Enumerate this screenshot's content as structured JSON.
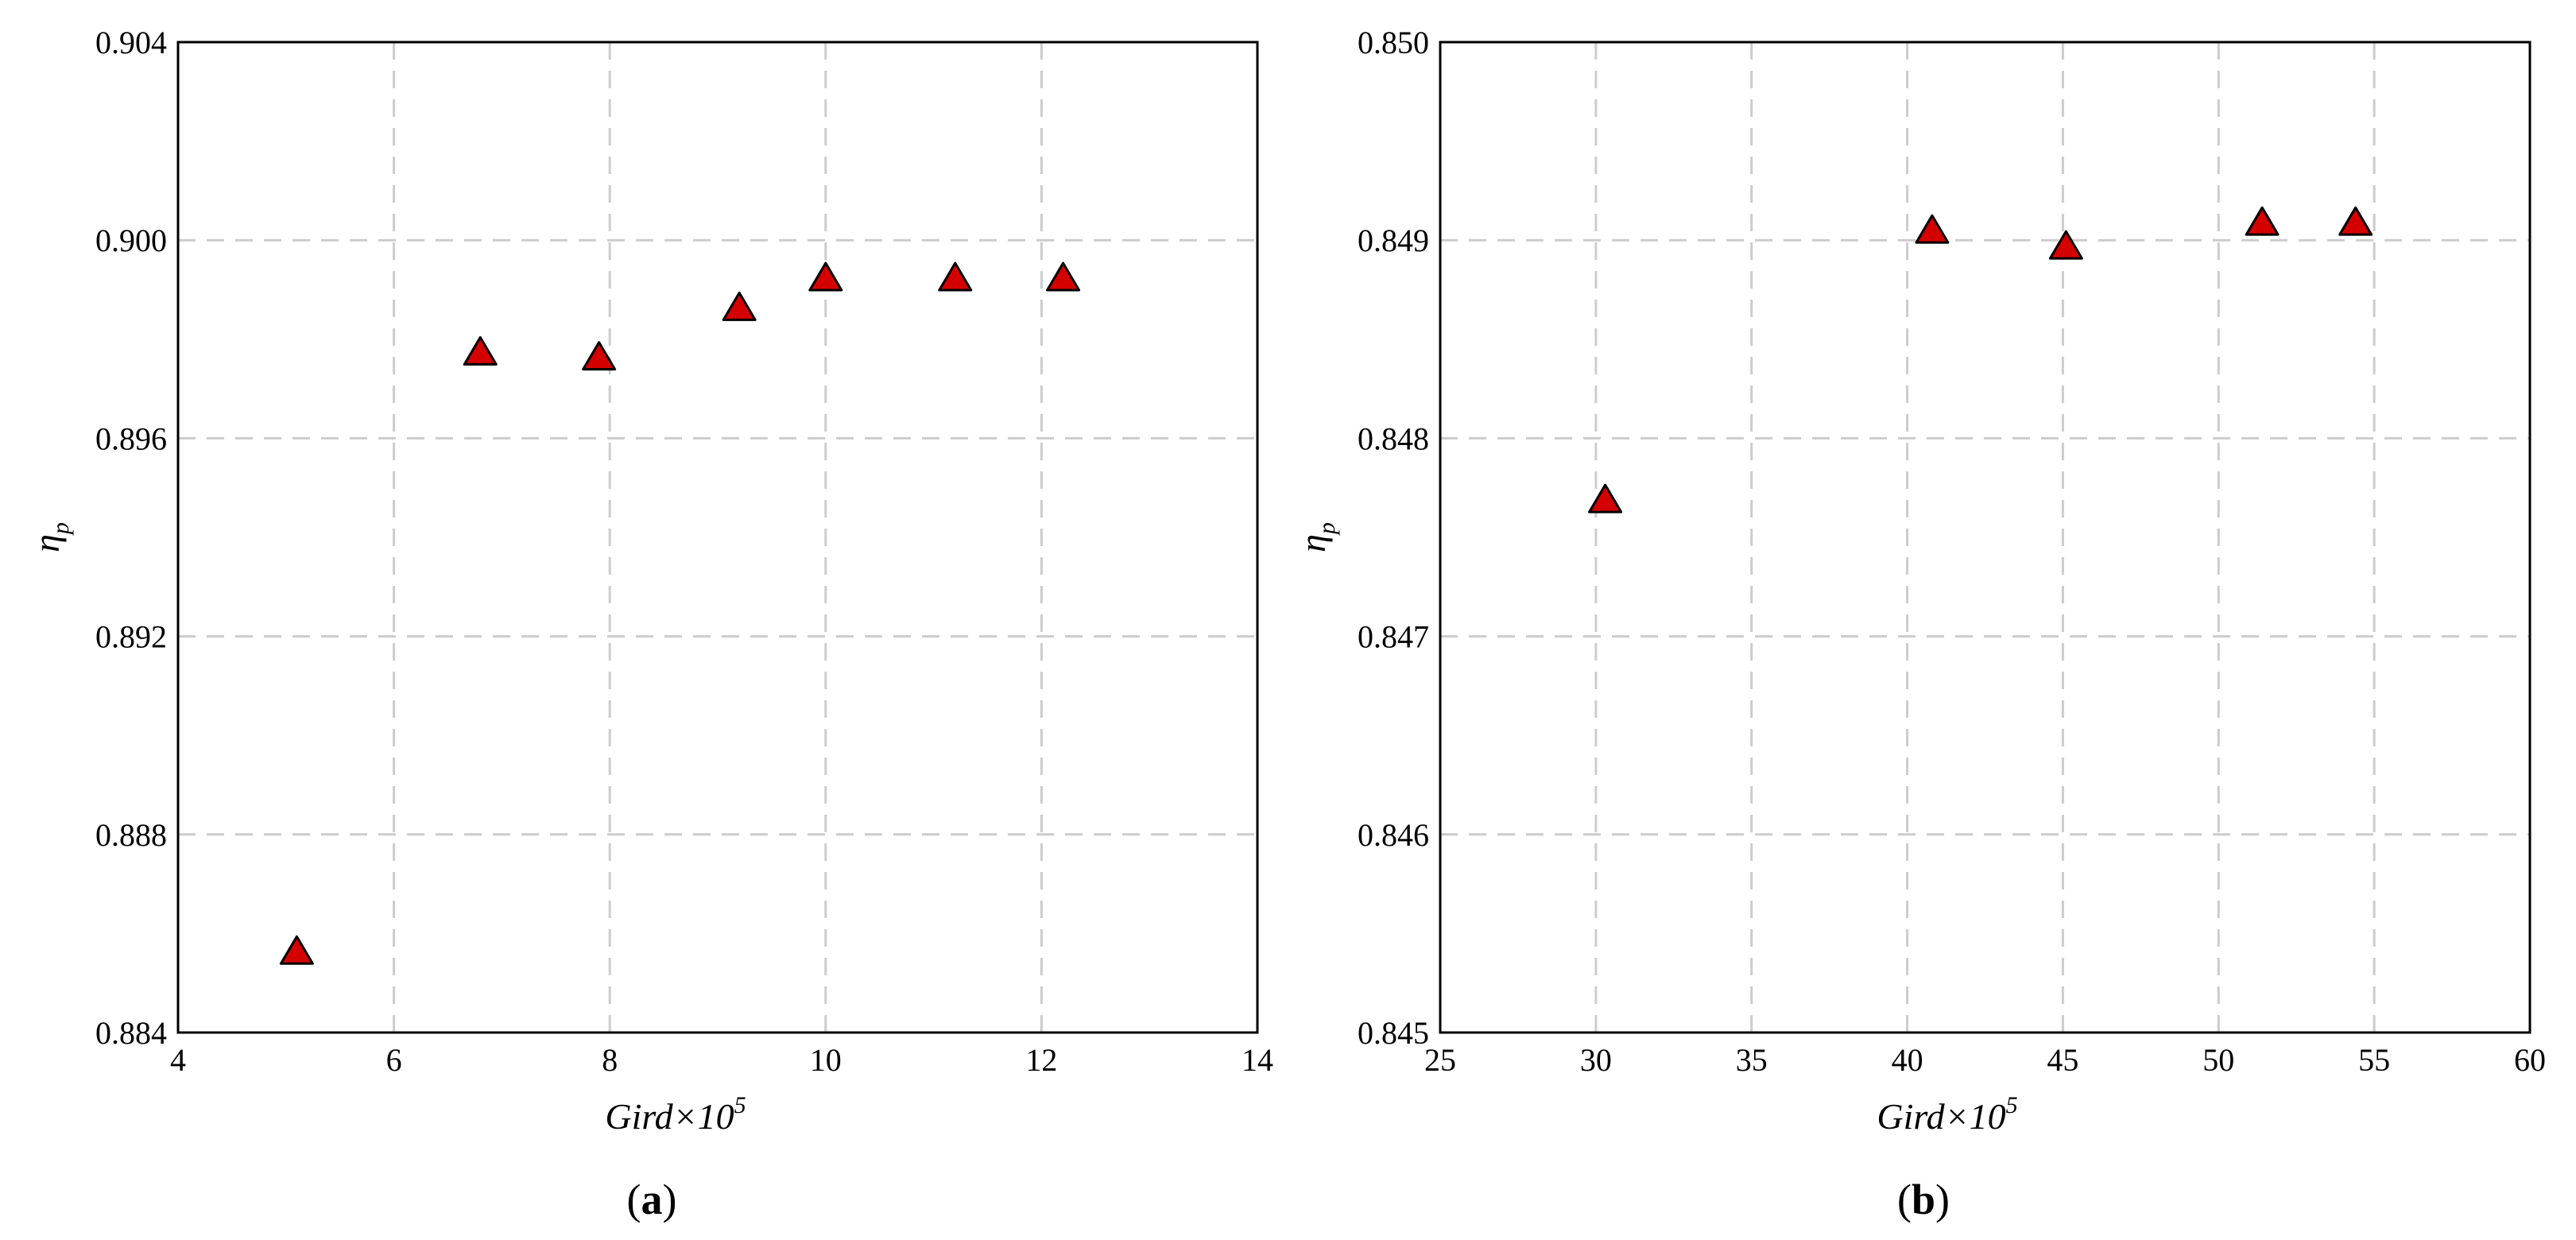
{
  "figure": {
    "panels": [
      {
        "id": "a",
        "panel_label": "a",
        "xlabel": "Gird×10",
        "xlabel_sup": "5",
        "ylabel": "η",
        "ylabel_sub": "p",
        "xticks": [
          "4",
          "6",
          "8",
          "10",
          "12",
          "14"
        ],
        "yticks": [
          "0.884",
          "0.888",
          "0.892",
          "0.896",
          "0.900",
          "0.904"
        ]
      },
      {
        "id": "b",
        "panel_label": "b",
        "xlabel": "Gird×10",
        "xlabel_sup": "5",
        "ylabel": "η",
        "ylabel_sub": "p",
        "xticks": [
          "25",
          "30",
          "35",
          "40",
          "45",
          "50",
          "55",
          "60"
        ],
        "yticks": [
          "0.845",
          "0.846",
          "0.847",
          "0.848",
          "0.849",
          "0.850"
        ]
      }
    ]
  },
  "colors": {
    "marker_fill": "#d40000",
    "marker_stroke": "#000000",
    "grid": "#cccccc",
    "axis": "#000000"
  },
  "chart_data": [
    {
      "type": "scatter",
      "panel": "a",
      "xlabel": "Gird×10^5",
      "ylabel": "η_p",
      "xlim": [
        4,
        14
      ],
      "ylim": [
        0.884,
        0.904
      ],
      "xticks": [
        4,
        6,
        8,
        10,
        12,
        14
      ],
      "yticks": [
        0.884,
        0.888,
        0.892,
        0.896,
        0.9,
        0.904
      ],
      "grid": true,
      "marker": "triangle",
      "series": [
        {
          "x": [
            5.1,
            6.8,
            7.9,
            9.2,
            10.0,
            11.2,
            12.2
          ],
          "y": [
            0.8856,
            0.8977,
            0.8976,
            0.8986,
            0.8992,
            0.8992,
            0.8992
          ]
        }
      ]
    },
    {
      "type": "scatter",
      "panel": "b",
      "xlabel": "Gird×10^5",
      "ylabel": "η_p",
      "xlim": [
        25,
        60
      ],
      "ylim": [
        0.845,
        0.85
      ],
      "xticks": [
        25,
        30,
        35,
        40,
        45,
        50,
        55,
        60
      ],
      "yticks": [
        0.845,
        0.846,
        0.847,
        0.848,
        0.849,
        0.85
      ],
      "grid": true,
      "marker": "triangle",
      "series": [
        {
          "x": [
            30.3,
            40.8,
            45.1,
            51.4,
            54.4
          ],
          "y": [
            0.84768,
            0.84904,
            0.84896,
            0.84908,
            0.84908
          ]
        }
      ]
    }
  ]
}
